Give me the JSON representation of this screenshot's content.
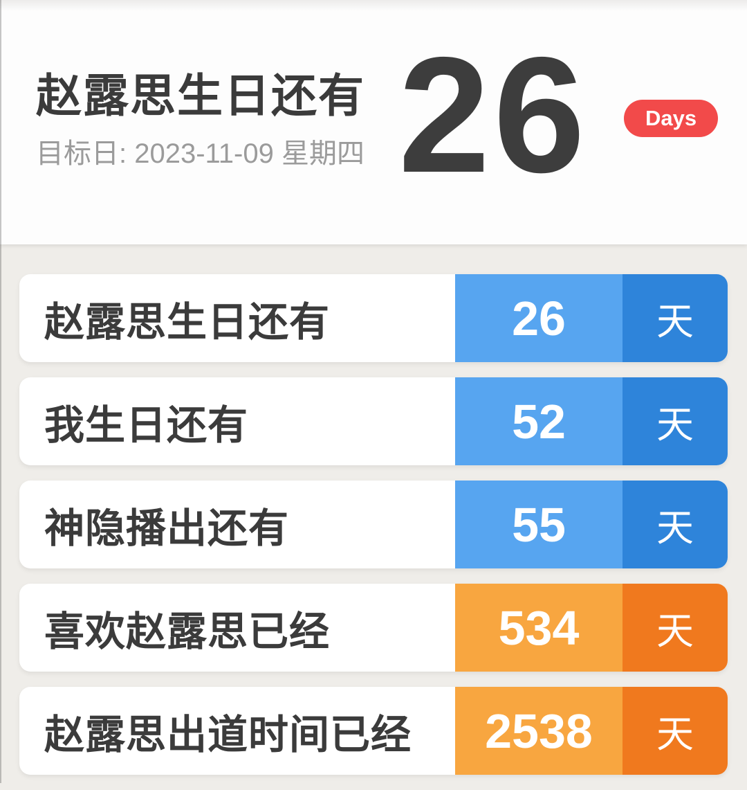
{
  "header": {
    "title": "赵露思生日还有",
    "target_date_label": "目标日: 2023-11-09 星期四",
    "big_number": "26",
    "badge_label": "Days"
  },
  "rows": [
    {
      "label": "赵露思生日还有",
      "value": "26",
      "unit": "天",
      "theme": "blue"
    },
    {
      "label": "我生日还有",
      "value": "52",
      "unit": "天",
      "theme": "blue"
    },
    {
      "label": "神隐播出还有",
      "value": "55",
      "unit": "天",
      "theme": "blue"
    },
    {
      "label": "喜欢赵露思已经",
      "value": "534",
      "unit": "天",
      "theme": "orange"
    },
    {
      "label": "赵露思出道时间已经",
      "value": "2538",
      "unit": "天",
      "theme": "orange"
    }
  ],
  "colors": {
    "page_bg": "#EFEDE9",
    "card_bg": "#FFFFFF",
    "title_text": "#3B3B3B",
    "subtitle_text": "#9B9B9B",
    "big_number_text": "#3D3D3D",
    "badge_red": "#F24A4A",
    "blue_light": "#57A5F0",
    "blue_dark": "#2E84DA",
    "orange_light": "#F8A640",
    "orange_dark": "#F0791E"
  }
}
